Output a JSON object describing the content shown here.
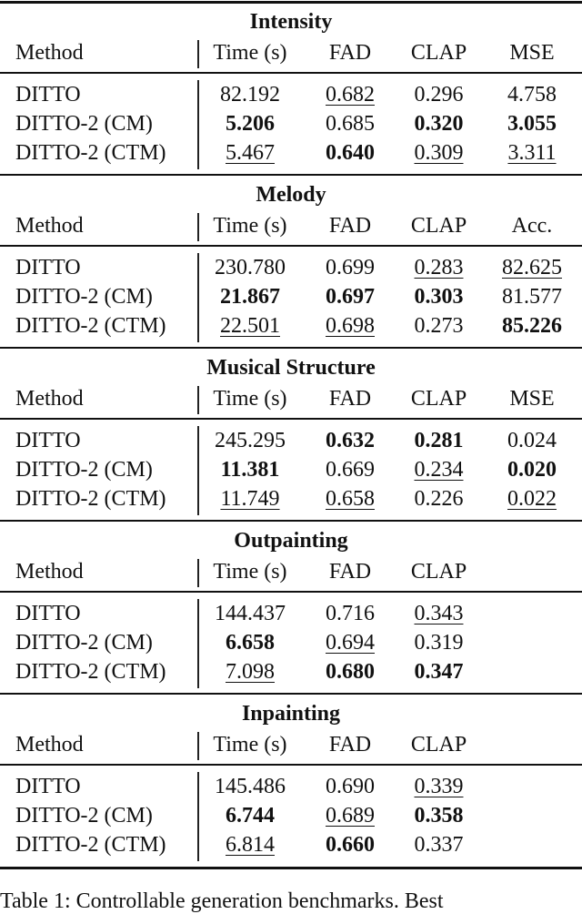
{
  "columns_default": [
    "Method",
    "Time (s)",
    "FAD",
    "CLAP"
  ],
  "sections": [
    {
      "title": "Intensity",
      "headers": [
        "Method",
        "Time (s)",
        "FAD",
        "CLAP",
        "MSE"
      ],
      "rows": [
        {
          "cells": [
            "DITTO",
            "82.192",
            "0.682",
            "0.296",
            "4.758"
          ],
          "bold": [],
          "underline": [
            2
          ]
        },
        {
          "cells": [
            "DITTO-2 (CM)",
            "5.206",
            "0.685",
            "0.320",
            "3.055"
          ],
          "bold": [
            1,
            3,
            4
          ],
          "underline": []
        },
        {
          "cells": [
            "DITTO-2 (CTM)",
            "5.467",
            "0.640",
            "0.309",
            "3.311"
          ],
          "bold": [
            2
          ],
          "underline": [
            1,
            3,
            4
          ]
        }
      ]
    },
    {
      "title": "Melody",
      "headers": [
        "Method",
        "Time (s)",
        "FAD",
        "CLAP",
        "Acc."
      ],
      "rows": [
        {
          "cells": [
            "DITTO",
            "230.780",
            "0.699",
            "0.283",
            "82.625"
          ],
          "bold": [],
          "underline": [
            3,
            4
          ]
        },
        {
          "cells": [
            "DITTO-2 (CM)",
            "21.867",
            "0.697",
            "0.303",
            "81.577"
          ],
          "bold": [
            1,
            2,
            3
          ],
          "underline": []
        },
        {
          "cells": [
            "DITTO-2 (CTM)",
            "22.501",
            "0.698",
            "0.273",
            "85.226"
          ],
          "bold": [
            4
          ],
          "underline": [
            1,
            2
          ]
        }
      ]
    },
    {
      "title": "Musical Structure",
      "headers": [
        "Method",
        "Time (s)",
        "FAD",
        "CLAP",
        "MSE"
      ],
      "rows": [
        {
          "cells": [
            "DITTO",
            "245.295",
            "0.632",
            "0.281",
            "0.024"
          ],
          "bold": [
            2,
            3
          ],
          "underline": []
        },
        {
          "cells": [
            "DITTO-2 (CM)",
            "11.381",
            "0.669",
            "0.234",
            "0.020"
          ],
          "bold": [
            1,
            4
          ],
          "underline": [
            3
          ]
        },
        {
          "cells": [
            "DITTO-2 (CTM)",
            "11.749",
            "0.658",
            "0.226",
            "0.022"
          ],
          "bold": [],
          "underline": [
            1,
            2,
            4
          ]
        }
      ]
    },
    {
      "title": "Outpainting",
      "headers": [
        "Method",
        "Time (s)",
        "FAD",
        "CLAP"
      ],
      "rows": [
        {
          "cells": [
            "DITTO",
            "144.437",
            "0.716",
            "0.343"
          ],
          "bold": [],
          "underline": [
            3
          ]
        },
        {
          "cells": [
            "DITTO-2 (CM)",
            "6.658",
            "0.694",
            "0.319"
          ],
          "bold": [
            1
          ],
          "underline": [
            2
          ]
        },
        {
          "cells": [
            "DITTO-2 (CTM)",
            "7.098",
            "0.680",
            "0.347"
          ],
          "bold": [
            2,
            3
          ],
          "underline": [
            1
          ]
        }
      ]
    },
    {
      "title": "Inpainting",
      "headers": [
        "Method",
        "Time (s)",
        "FAD",
        "CLAP"
      ],
      "rows": [
        {
          "cells": [
            "DITTO",
            "145.486",
            "0.690",
            "0.339"
          ],
          "bold": [],
          "underline": [
            3
          ]
        },
        {
          "cells": [
            "DITTO-2 (CM)",
            "6.744",
            "0.689",
            "0.358"
          ],
          "bold": [
            1,
            3
          ],
          "underline": [
            2
          ]
        },
        {
          "cells": [
            "DITTO-2 (CTM)",
            "6.814",
            "0.660",
            "0.337"
          ],
          "bold": [
            2
          ],
          "underline": [
            1
          ]
        }
      ]
    }
  ],
  "caption": "Table 1: Controllable generation benchmarks. Best"
}
